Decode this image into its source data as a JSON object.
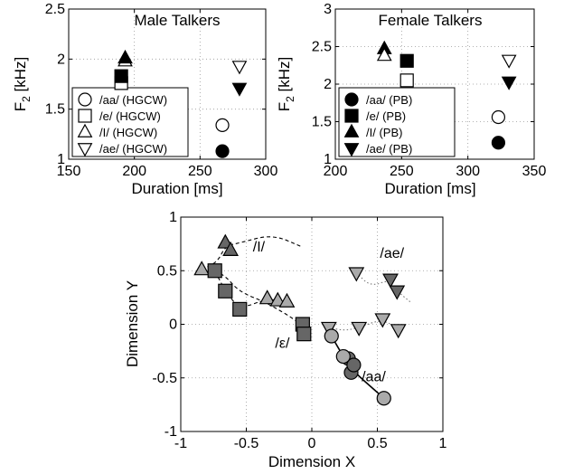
{
  "chart_data": [
    {
      "type": "scatter",
      "title": "Male Talkers",
      "xlabel": "Duration [ms]",
      "ylabel_main": "F",
      "ylabel_sub": "2",
      "ylabel_unit": " [kHz]",
      "xlim": [
        150,
        300
      ],
      "ylim": [
        1,
        2.5
      ],
      "xticks": [
        150,
        200,
        250,
        300
      ],
      "yticks": [
        1,
        1.5,
        2,
        2.5
      ],
      "grid": true,
      "legend_position": "bottom-left",
      "series": [
        {
          "name": "/aa/ (HGCW)",
          "marker": "circle-open",
          "x": [
            267
          ],
          "y": [
            1.34
          ]
        },
        {
          "name": "/e/ (HGCW)",
          "marker": "square-open",
          "x": [
            190
          ],
          "y": [
            1.76
          ]
        },
        {
          "name": "/I/ (HGCW)",
          "marker": "triangle-up-open",
          "x": [
            193
          ],
          "y": [
            1.98
          ]
        },
        {
          "name": "/ae/ (HGCW)",
          "marker": "triangle-down-open",
          "x": [
            280
          ],
          "y": [
            1.93
          ]
        },
        {
          "name": "",
          "marker": "circle-filled",
          "x": [
            267
          ],
          "y": [
            1.08
          ]
        },
        {
          "name": "",
          "marker": "square-filled",
          "x": [
            190
          ],
          "y": [
            1.83
          ]
        },
        {
          "name": "",
          "marker": "triangle-up-filled",
          "x": [
            193
          ],
          "y": [
            2.01
          ]
        },
        {
          "name": "",
          "marker": "triangle-down-filled",
          "x": [
            280
          ],
          "y": [
            1.71
          ]
        }
      ]
    },
    {
      "type": "scatter",
      "title": "Female Talkers",
      "xlabel": "Duration [ms]",
      "ylabel_main": "F",
      "ylabel_sub": "2",
      "ylabel_unit": " [kHz]",
      "xlim": [
        200,
        350
      ],
      "ylim": [
        1,
        3
      ],
      "xticks": [
        200,
        250,
        300,
        350
      ],
      "yticks": [
        1,
        1.5,
        2,
        2.5,
        3
      ],
      "grid": true,
      "legend_position": "bottom-left",
      "series": [
        {
          "name": "/aa/ (PB)",
          "marker": "circle-filled",
          "x": [
            323
          ],
          "y": [
            1.22
          ]
        },
        {
          "name": "/e/ (PB)",
          "marker": "square-filled",
          "x": [
            254
          ],
          "y": [
            2.31
          ]
        },
        {
          "name": "/I/ (PB)",
          "marker": "triangle-up-filled",
          "x": [
            237
          ],
          "y": [
            2.47
          ]
        },
        {
          "name": "/ae/ (PB)",
          "marker": "triangle-down-filled",
          "x": [
            331
          ],
          "y": [
            2.03
          ]
        },
        {
          "name": "",
          "marker": "circle-open",
          "x": [
            323
          ],
          "y": [
            1.56
          ]
        },
        {
          "name": "",
          "marker": "square-open",
          "x": [
            254
          ],
          "y": [
            2.05
          ]
        },
        {
          "name": "",
          "marker": "triangle-up-open",
          "x": [
            237
          ],
          "y": [
            2.38
          ]
        },
        {
          "name": "",
          "marker": "triangle-down-open",
          "x": [
            331
          ],
          "y": [
            2.32
          ]
        }
      ]
    },
    {
      "type": "scatter",
      "title": "",
      "xlabel": "Dimension X",
      "ylabel": "Dimension Y",
      "xlim": [
        -1,
        1
      ],
      "ylim": [
        -1,
        1
      ],
      "xticks": [
        -1,
        -0.5,
        0,
        0.5,
        1
      ],
      "yticks": [
        -1,
        -0.5,
        0,
        0.5,
        1
      ],
      "grid": true,
      "annotations": [
        {
          "text": "/I/",
          "x": -0.45,
          "y": 0.68
        },
        {
          "text": "/ae/",
          "x": 0.52,
          "y": 0.62
        },
        {
          "text": "/ε/",
          "x": -0.28,
          "y": -0.22
        },
        {
          "text": "/aa/",
          "x": 0.38,
          "y": -0.53
        }
      ],
      "series": [
        {
          "name": "",
          "vowel": "I",
          "marker": "triangle-up",
          "fill": "#666666",
          "x": [
            -0.66,
            -0.62
          ],
          "y": [
            0.76,
            0.69
          ]
        },
        {
          "name": "",
          "vowel": "I",
          "marker": "triangle-up",
          "fill": "#aaaaaa",
          "x": [
            -0.84,
            -0.34,
            -0.26,
            -0.19
          ],
          "y": [
            0.51,
            0.24,
            0.22,
            0.21
          ]
        },
        {
          "name": "",
          "vowel": "e",
          "marker": "square",
          "fill": "#666666",
          "x": [
            -0.74,
            -0.66,
            -0.55,
            -0.07,
            -0.06
          ],
          "y": [
            0.5,
            0.31,
            0.14,
            0.0,
            -0.09
          ]
        },
        {
          "name": "",
          "vowel": "ae",
          "marker": "triangle-down",
          "fill": "#666666",
          "x": [
            0.6,
            0.65
          ],
          "y": [
            0.42,
            0.31
          ]
        },
        {
          "name": "",
          "vowel": "ae",
          "marker": "triangle-down",
          "fill": "#aaaaaa",
          "x": [
            0.34,
            0.54,
            0.13,
            0.36,
            0.66
          ],
          "y": [
            0.48,
            0.05,
            -0.03,
            -0.03,
            -0.05
          ]
        },
        {
          "name": "",
          "vowel": "aa",
          "marker": "circle",
          "fill": "#666666",
          "x": [
            0.28,
            0.3,
            0.32
          ],
          "y": [
            -0.32,
            -0.45,
            -0.38
          ]
        },
        {
          "name": "",
          "vowel": "aa",
          "marker": "circle",
          "fill": "#aaaaaa",
          "x": [
            0.15,
            0.24,
            0.55
          ],
          "y": [
            -0.11,
            -0.3,
            -0.69
          ]
        }
      ],
      "lines": [
        {
          "style": "dashed",
          "x": [
            -0.84,
            -0.72,
            -0.66,
            -0.55,
            -0.3,
            -0.07
          ],
          "y": [
            0.51,
            0.58,
            0.73,
            0.76,
            0.84,
            0.72
          ]
        },
        {
          "style": "dashed",
          "x": [
            -0.84,
            -0.74,
            -0.66,
            -0.55,
            -0.34,
            -0.19
          ],
          "y": [
            0.51,
            0.5,
            0.31,
            0.14,
            0.24,
            0.21
          ]
        },
        {
          "style": "dashed",
          "x": [
            -0.74,
            -0.66,
            -0.55,
            -0.34,
            -0.07,
            -0.06
          ],
          "y": [
            0.5,
            0.45,
            0.3,
            0.2,
            0.0,
            -0.09
          ]
        },
        {
          "style": "dotted",
          "x": [
            0.34,
            0.45,
            0.6,
            0.65,
            0.76
          ],
          "y": [
            0.48,
            0.35,
            0.42,
            0.31,
            0.2
          ]
        },
        {
          "style": "dotted",
          "x": [
            0.13,
            0.25,
            0.36,
            0.54,
            0.66
          ],
          "y": [
            -0.03,
            -0.06,
            -0.03,
            0.05,
            -0.05
          ]
        },
        {
          "style": "solid",
          "x": [
            0.15,
            0.24,
            0.3,
            0.55
          ],
          "y": [
            -0.11,
            -0.3,
            -0.42,
            -0.69
          ]
        }
      ]
    }
  ]
}
